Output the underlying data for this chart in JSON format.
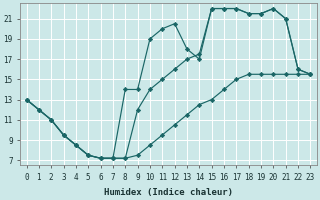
{
  "xlabel": "Humidex (Indice chaleur)",
  "bg_color": "#cce8e8",
  "grid_color": "#ffffff",
  "line_color": "#1a6666",
  "xlim": [
    -0.5,
    23.5
  ],
  "ylim": [
    6.5,
    22.5
  ],
  "xticks": [
    0,
    1,
    2,
    3,
    4,
    5,
    6,
    7,
    8,
    9,
    10,
    11,
    12,
    13,
    14,
    15,
    16,
    17,
    18,
    19,
    20,
    21,
    22,
    23
  ],
  "yticks": [
    7,
    9,
    11,
    13,
    15,
    17,
    19,
    21
  ],
  "lines": [
    {
      "x": [
        0,
        1,
        2,
        3,
        4,
        5,
        6,
        7,
        8,
        9,
        10,
        11,
        12,
        13,
        14,
        15,
        16,
        17,
        18,
        19,
        20,
        21,
        22,
        23
      ],
      "y": [
        13,
        12,
        11,
        9.5,
        8.5,
        7.5,
        7.2,
        7.2,
        14,
        14,
        19,
        20,
        20.5,
        18,
        17,
        22,
        22,
        22,
        21.5,
        21.5,
        22,
        21,
        16,
        15.5
      ],
      "linestyle": "-",
      "marker": "D",
      "markersize": 2.2
    },
    {
      "x": [
        0,
        1,
        2,
        3,
        4,
        5,
        6,
        7,
        8,
        9,
        10,
        11,
        12,
        13,
        14,
        15,
        16,
        17,
        18,
        19,
        20,
        21,
        22,
        23
      ],
      "y": [
        13,
        12,
        11,
        9.5,
        8.5,
        7.5,
        7.2,
        7.2,
        7.2,
        12,
        14,
        15,
        16,
        17,
        17.5,
        22,
        22,
        22,
        21.5,
        21.5,
        22,
        21,
        16,
        15.5
      ],
      "linestyle": "-",
      "marker": "D",
      "markersize": 2.2
    },
    {
      "x": [
        0,
        1,
        2,
        3,
        4,
        5,
        6,
        7,
        8,
        9,
        10,
        11,
        12,
        13,
        14,
        15,
        16,
        17,
        18,
        19,
        20,
        21,
        22,
        23
      ],
      "y": [
        13,
        12,
        11,
        9.5,
        8.5,
        7.5,
        7.2,
        7.2,
        7.2,
        7.5,
        8.5,
        9.5,
        10.5,
        11.5,
        12.5,
        13,
        14,
        15,
        15.5,
        15.5,
        15.5,
        15.5,
        15.5,
        15.5
      ],
      "linestyle": "-",
      "marker": "D",
      "markersize": 2.2
    }
  ]
}
